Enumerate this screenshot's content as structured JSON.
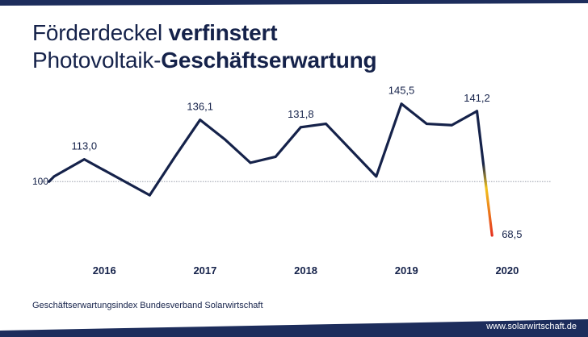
{
  "header": {
    "line1_regular": "Förderdeckel ",
    "line1_bold": "verfinstert",
    "line2_regular": "Photovoltaik-",
    "line2_bold": "Geschäftserwartung"
  },
  "footer": {
    "source": "Geschäftserwartungsindex Bundesverband Solarwirtschaft",
    "website": "www.solarwirtschaft.de"
  },
  "colors": {
    "navy": "#15224a",
    "frame_navy": "#1d2d5c",
    "yellow": "#f2c21b",
    "red": "#e5321f"
  },
  "chart_data": {
    "type": "line",
    "x": [
      2015.45,
      2015.5,
      2015.8,
      2016.45,
      2016.7,
      2016.95,
      2017.2,
      2017.45,
      2017.7,
      2017.95,
      2018.2,
      2018.7,
      2018.95,
      2019.2,
      2019.45,
      2019.7,
      2019.85
    ],
    "values": [
      100.0,
      103.0,
      113.0,
      92.0,
      114.5,
      136.1,
      124.5,
      111.0,
      114.5,
      131.8,
      133.8,
      103.0,
      145.5,
      133.8,
      133.0,
      141.2,
      68.5
    ],
    "data_labels": [
      {
        "x": 2015.8,
        "y": 113.0,
        "text": "113,0"
      },
      {
        "x": 2016.95,
        "y": 136.1,
        "text": "136,1"
      },
      {
        "x": 2017.95,
        "y": 131.8,
        "text": "131,8"
      },
      {
        "x": 2018.95,
        "y": 145.5,
        "text": "145,5"
      },
      {
        "x": 2019.7,
        "y": 141.2,
        "text": "141,2"
      },
      {
        "x": 2019.85,
        "y": 68.5,
        "text": "68,5"
      }
    ],
    "reference_line": {
      "y": 100,
      "label": "100"
    },
    "xticks": [
      {
        "x": 2016,
        "label": "2016"
      },
      {
        "x": 2017,
        "label": "2017"
      },
      {
        "x": 2018,
        "label": "2018"
      },
      {
        "x": 2019,
        "label": "2019"
      },
      {
        "x": 2020,
        "label": "2020"
      }
    ],
    "xlim": [
      2015.3,
      2020.45
    ],
    "ylim": [
      60,
      160
    ],
    "grid": false,
    "title": "",
    "xlabel": "",
    "ylabel": ""
  }
}
